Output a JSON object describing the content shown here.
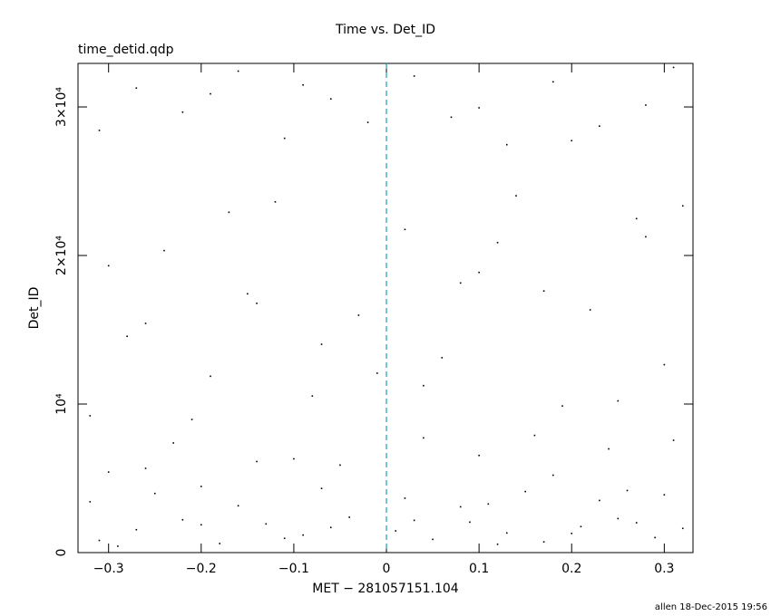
{
  "chart_data": {
    "type": "scatter",
    "title": "Time vs. Det_ID",
    "subtitle": "time_detid.qdp",
    "x_label": "MET − 281057151.104",
    "y_label": "Det_ID",
    "footer": "allen 18-Dec-2015 19:56",
    "color": "#000000",
    "reference_line_x": 0,
    "reference_line_color": "#1a9fb0",
    "xlim": [
      -0.333,
      0.331
    ],
    "ylim": [
      0,
      32930
    ],
    "xticks": [
      {
        "value": -0.3,
        "label": "−0.3"
      },
      {
        "value": -0.2,
        "label": "−0.2"
      },
      {
        "value": -0.1,
        "label": "−0.1"
      },
      0,
      0.1,
      0.2,
      0.3
    ],
    "yticks": [
      0,
      {
        "value": 10000,
        "label": "10⁴"
      },
      {
        "value": 20000,
        "label": "2×10⁴"
      },
      {
        "value": 30000,
        "label": "3×10⁴"
      }
    ],
    "x": [
      -0.31,
      -0.27,
      -0.22,
      -0.18,
      -0.13,
      -0.09,
      -0.04,
      0.01,
      0.05,
      0.09,
      0.13,
      0.17,
      0.21,
      0.25,
      0.29,
      0.32,
      -0.29,
      -0.2,
      -0.11,
      0.03,
      0.12,
      0.2,
      0.27,
      -0.06,
      -0.32,
      -0.25,
      -0.16,
      -0.07,
      0.02,
      0.08,
      0.15,
      0.23,
      0.3,
      -0.2,
      0.11,
      0.26,
      -0.3,
      -0.23,
      -0.14,
      -0.05,
      0.04,
      0.1,
      0.18,
      0.24,
      0.31,
      -0.1,
      0.16,
      -0.26,
      -0.32,
      -0.28,
      -0.24,
      -0.19,
      -0.15,
      -0.12,
      -0.08,
      -0.03,
      0.02,
      0.06,
      0.1,
      0.14,
      0.19,
      0.22,
      0.27,
      0.3,
      -0.3,
      -0.21,
      -0.17,
      -0.07,
      0.04,
      0.12,
      0.17,
      0.25,
      0.32,
      -0.26,
      -0.01,
      0.08,
      0.28,
      -0.14,
      -0.31,
      -0.27,
      -0.22,
      -0.16,
      -0.11,
      -0.06,
      -0.02,
      0.03,
      0.07,
      0.13,
      0.18,
      0.23,
      0.28,
      0.31,
      -0.19,
      0.1,
      0.2,
      -0.09
    ],
    "y": [
      820,
      1540,
      2210,
      610,
      1930,
      1180,
      2380,
      1460,
      890,
      2050,
      1320,
      720,
      1750,
      2290,
      1010,
      1630,
      430,
      1870,
      960,
      2170,
      560,
      1290,
      2010,
      1690,
      3420,
      3980,
      3150,
      4320,
      3660,
      3080,
      4110,
      3510,
      3890,
      4450,
      3270,
      4180,
      5420,
      7380,
      6130,
      5890,
      7720,
      6540,
      5210,
      6980,
      7560,
      6310,
      7890,
      5670,
      9210,
      14560,
      20330,
      11870,
      17420,
      23610,
      10540,
      15980,
      21750,
      13120,
      18860,
      24020,
      9870,
      16340,
      22480,
      12650,
      19310,
      8960,
      22910,
      14020,
      11240,
      20870,
      17610,
      10210,
      23340,
      15430,
      12080,
      18150,
      21260,
      16780,
      28420,
      31270,
      29650,
      32410,
      27890,
      30540,
      28960,
      32080,
      29310,
      27460,
      31690,
      28710,
      30120,
      32660,
      30880,
      29940,
      27730,
      31480
    ]
  }
}
